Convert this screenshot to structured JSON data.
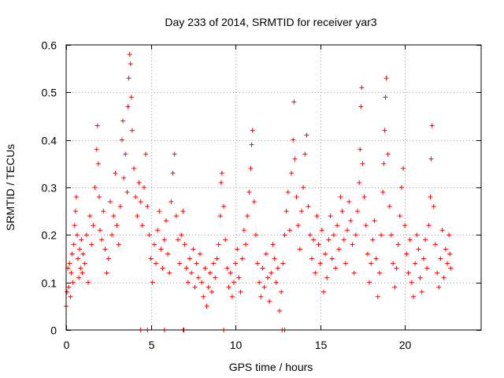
{
  "chart_data": {
    "type": "scatter",
    "title": "Day 233 of 2014, SRMTID for receiver yar3",
    "xlabel": "GPS time / hours",
    "ylabel": "SRMTID / TECUs",
    "xlim": [
      0,
      24.5
    ],
    "ylim": [
      0,
      0.6
    ],
    "x_ticks": [
      0,
      5,
      10,
      15,
      20
    ],
    "y_ticks": [
      0,
      0.1,
      0.2,
      0.3,
      0.4,
      0.5,
      0.6
    ],
    "x_tick_labels": [
      "0",
      "5",
      "10",
      "15",
      "20"
    ],
    "y_tick_labels": [
      "0",
      "0.1",
      "0.2",
      "0.3",
      "0.4",
      "0.5",
      "0.6"
    ],
    "grid": true,
    "marker": "plus",
    "color": "#ff0000",
    "series": [
      {
        "name": "SRMTID",
        "points": [
          [
            0.0,
            0.05
          ],
          [
            0.05,
            0.08
          ],
          [
            0.1,
            0.13
          ],
          [
            0.15,
            0.09
          ],
          [
            0.2,
            0.14
          ],
          [
            0.25,
            0.07
          ],
          [
            0.3,
            0.12
          ],
          [
            0.35,
            0.16
          ],
          [
            0.4,
            0.1
          ],
          [
            0.45,
            0.18
          ],
          [
            0.5,
            0.22
          ],
          [
            0.55,
            0.25
          ],
          [
            0.6,
            0.28
          ],
          [
            0.65,
            0.2
          ],
          [
            0.7,
            0.15
          ],
          [
            0.75,
            0.11
          ],
          [
            0.8,
            0.17
          ],
          [
            0.85,
            0.13
          ],
          [
            0.9,
            0.19
          ],
          [
            0.95,
            0.12
          ],
          [
            1.0,
            0.16
          ],
          [
            1.1,
            0.14
          ],
          [
            1.2,
            0.2
          ],
          [
            1.3,
            0.1
          ],
          [
            1.4,
            0.24
          ],
          [
            1.5,
            0.18
          ],
          [
            1.6,
            0.22
          ],
          [
            1.7,
            0.3
          ],
          [
            1.8,
            0.38
          ],
          [
            1.85,
            0.43
          ],
          [
            1.9,
            0.35
          ],
          [
            1.95,
            0.28
          ],
          [
            2.0,
            0.21
          ],
          [
            2.1,
            0.19
          ],
          [
            2.2,
            0.25
          ],
          [
            2.3,
            0.17
          ],
          [
            2.4,
            0.12
          ],
          [
            2.5,
            0.15
          ],
          [
            2.6,
            0.27
          ],
          [
            2.7,
            0.2
          ],
          [
            2.8,
            0.24
          ],
          [
            2.9,
            0.33
          ],
          [
            3.0,
            0.22
          ],
          [
            3.1,
            0.18
          ],
          [
            3.2,
            0.26
          ],
          [
            3.3,
            0.4
          ],
          [
            3.35,
            0.44
          ],
          [
            3.4,
            0.32
          ],
          [
            3.5,
            0.37
          ],
          [
            3.6,
            0.29
          ],
          [
            3.65,
            0.47
          ],
          [
            3.7,
            0.53
          ],
          [
            3.75,
            0.58
          ],
          [
            3.8,
            0.56
          ],
          [
            3.85,
            0.49
          ],
          [
            3.9,
            0.42
          ],
          [
            4.0,
            0.34
          ],
          [
            4.1,
            0.28
          ],
          [
            4.2,
            0.24
          ],
          [
            4.3,
            0.31
          ],
          [
            4.4,
            0.27
          ],
          [
            4.5,
            0.22
          ],
          [
            4.6,
            0.3
          ],
          [
            4.7,
            0.37
          ],
          [
            4.8,
            0.26
          ],
          [
            4.9,
            0.2
          ],
          [
            5.0,
            0.15
          ],
          [
            5.1,
            0.1
          ],
          [
            5.2,
            0.18
          ],
          [
            5.3,
            0.14
          ],
          [
            5.4,
            0.21
          ],
          [
            5.5,
            0.25
          ],
          [
            5.6,
            0.17
          ],
          [
            5.7,
            0.13
          ],
          [
            5.8,
            0.19
          ],
          [
            5.9,
            0.23
          ],
          [
            6.0,
            0.16
          ],
          [
            6.1,
            0.12
          ],
          [
            6.2,
            0.27
          ],
          [
            6.3,
            0.33
          ],
          [
            6.4,
            0.37
          ],
          [
            6.5,
            0.24
          ],
          [
            6.6,
            0.19
          ],
          [
            6.7,
            0.14
          ],
          [
            6.8,
            0.2
          ],
          [
            6.9,
            0.25
          ],
          [
            7.0,
            0.18
          ],
          [
            7.1,
            0.13
          ],
          [
            7.2,
            0.1
          ],
          [
            7.3,
            0.15
          ],
          [
            7.4,
            0.12
          ],
          [
            7.5,
            0.17
          ],
          [
            7.6,
            0.09
          ],
          [
            7.7,
            0.14
          ],
          [
            7.8,
            0.11
          ],
          [
            7.9,
            0.16
          ],
          [
            8.0,
            0.1
          ],
          [
            8.1,
            0.07
          ],
          [
            8.2,
            0.13
          ],
          [
            8.3,
            0.05
          ],
          [
            8.4,
            0.09
          ],
          [
            8.5,
            0.12
          ],
          [
            8.6,
            0.08
          ],
          [
            8.7,
            0.14
          ],
          [
            8.8,
            0.11
          ],
          [
            8.9,
            0.15
          ],
          [
            9.0,
            0.18
          ],
          [
            9.1,
            0.24
          ],
          [
            9.15,
            0.31
          ],
          [
            9.2,
            0.33
          ],
          [
            9.3,
            0.26
          ],
          [
            9.4,
            0.19
          ],
          [
            9.5,
            0.13
          ],
          [
            9.6,
            0.09
          ],
          [
            9.7,
            0.12
          ],
          [
            9.8,
            0.07
          ],
          [
            9.9,
            0.1
          ],
          [
            10.0,
            0.14
          ],
          [
            10.1,
            0.17
          ],
          [
            10.2,
            0.11
          ],
          [
            10.3,
            0.08
          ],
          [
            10.4,
            0.15
          ],
          [
            10.5,
            0.21
          ],
          [
            10.6,
            0.18
          ],
          [
            10.7,
            0.24
          ],
          [
            10.8,
            0.29
          ],
          [
            10.9,
            0.34
          ],
          [
            10.95,
            0.39
          ],
          [
            11.0,
            0.42
          ],
          [
            11.1,
            0.27
          ],
          [
            11.2,
            0.2
          ],
          [
            11.3,
            0.14
          ],
          [
            11.4,
            0.1
          ],
          [
            11.5,
            0.07
          ],
          [
            11.6,
            0.13
          ],
          [
            11.7,
            0.09
          ],
          [
            11.8,
            0.16
          ],
          [
            11.9,
            0.11
          ],
          [
            12.0,
            0.06
          ],
          [
            12.1,
            0.12
          ],
          [
            12.2,
            0.18
          ],
          [
            12.3,
            0.15
          ],
          [
            12.4,
            0.1
          ],
          [
            12.5,
            0.13
          ],
          [
            12.6,
            0.04
          ],
          [
            12.7,
            0.08
          ],
          [
            12.8,
            0.14
          ],
          [
            12.9,
            0.2
          ],
          [
            13.0,
            0.25
          ],
          [
            13.1,
            0.29
          ],
          [
            13.2,
            0.21
          ],
          [
            13.3,
            0.33
          ],
          [
            13.4,
            0.4
          ],
          [
            13.45,
            0.48
          ],
          [
            13.5,
            0.36
          ],
          [
            13.6,
            0.28
          ],
          [
            13.7,
            0.22
          ],
          [
            13.8,
            0.17
          ],
          [
            13.9,
            0.25
          ],
          [
            14.0,
            0.3
          ],
          [
            14.1,
            0.37
          ],
          [
            14.2,
            0.41
          ],
          [
            14.3,
            0.26
          ],
          [
            14.4,
            0.2
          ],
          [
            14.5,
            0.15
          ],
          [
            14.6,
            0.19
          ],
          [
            14.7,
            0.12
          ],
          [
            14.8,
            0.24
          ],
          [
            14.9,
            0.18
          ],
          [
            15.0,
            0.14
          ],
          [
            15.1,
            0.21
          ],
          [
            15.2,
            0.08
          ],
          [
            15.3,
            0.16
          ],
          [
            15.4,
            0.11
          ],
          [
            15.5,
            0.19
          ],
          [
            15.6,
            0.24
          ],
          [
            15.7,
            0.15
          ],
          [
            15.8,
            0.2
          ],
          [
            15.9,
            0.13
          ],
          [
            16.0,
            0.22
          ],
          [
            16.1,
            0.17
          ],
          [
            16.2,
            0.28
          ],
          [
            16.3,
            0.25
          ],
          [
            16.4,
            0.19
          ],
          [
            16.5,
            0.14
          ],
          [
            16.6,
            0.21
          ],
          [
            16.7,
            0.27
          ],
          [
            16.8,
            0.23
          ],
          [
            16.9,
            0.18
          ],
          [
            17.0,
            0.12
          ],
          [
            17.1,
            0.2
          ],
          [
            17.2,
            0.25
          ],
          [
            17.3,
            0.31
          ],
          [
            17.35,
            0.38
          ],
          [
            17.4,
            0.47
          ],
          [
            17.45,
            0.51
          ],
          [
            17.5,
            0.35
          ],
          [
            17.6,
            0.28
          ],
          [
            17.7,
            0.22
          ],
          [
            17.8,
            0.16
          ],
          [
            17.9,
            0.1
          ],
          [
            18.0,
            0.14
          ],
          [
            18.1,
            0.19
          ],
          [
            18.2,
            0.23
          ],
          [
            18.3,
            0.15
          ],
          [
            18.4,
            0.07
          ],
          [
            18.5,
            0.12
          ],
          [
            18.6,
            0.2
          ],
          [
            18.7,
            0.29
          ],
          [
            18.75,
            0.35
          ],
          [
            18.8,
            0.42
          ],
          [
            18.85,
            0.49
          ],
          [
            18.9,
            0.53
          ],
          [
            19.0,
            0.37
          ],
          [
            19.1,
            0.26
          ],
          [
            19.2,
            0.2
          ],
          [
            19.3,
            0.14
          ],
          [
            19.4,
            0.09
          ],
          [
            19.5,
            0.13
          ],
          [
            19.6,
            0.18
          ],
          [
            19.7,
            0.24
          ],
          [
            19.8,
            0.3
          ],
          [
            19.9,
            0.34
          ],
          [
            20.0,
            0.22
          ],
          [
            20.1,
            0.16
          ],
          [
            20.2,
            0.12
          ],
          [
            20.3,
            0.19
          ],
          [
            20.4,
            0.1
          ],
          [
            20.5,
            0.07
          ],
          [
            20.6,
            0.14
          ],
          [
            20.7,
            0.2
          ],
          [
            20.8,
            0.17
          ],
          [
            20.9,
            0.11
          ],
          [
            21.0,
            0.08
          ],
          [
            21.1,
            0.15
          ],
          [
            21.2,
            0.19
          ],
          [
            21.3,
            0.13
          ],
          [
            21.4,
            0.22
          ],
          [
            21.5,
            0.28
          ],
          [
            21.55,
            0.36
          ],
          [
            21.6,
            0.43
          ],
          [
            21.7,
            0.26
          ],
          [
            21.8,
            0.18
          ],
          [
            21.9,
            0.12
          ],
          [
            22.0,
            0.09
          ],
          [
            22.1,
            0.15
          ],
          [
            22.2,
            0.21
          ],
          [
            22.3,
            0.11
          ],
          [
            22.4,
            0.17
          ],
          [
            22.5,
            0.14
          ],
          [
            22.6,
            0.2
          ],
          [
            22.65,
            0.16
          ],
          [
            22.7,
            0.13
          ],
          [
            4.4,
            0.0
          ],
          [
            4.8,
            0.0
          ],
          [
            5.8,
            0.0
          ],
          [
            6.9,
            0.0
          ],
          [
            6.95,
            0.0
          ],
          [
            9.3,
            0.0
          ],
          [
            12.75,
            0.0
          ],
          [
            12.9,
            0.0
          ]
        ]
      }
    ]
  }
}
